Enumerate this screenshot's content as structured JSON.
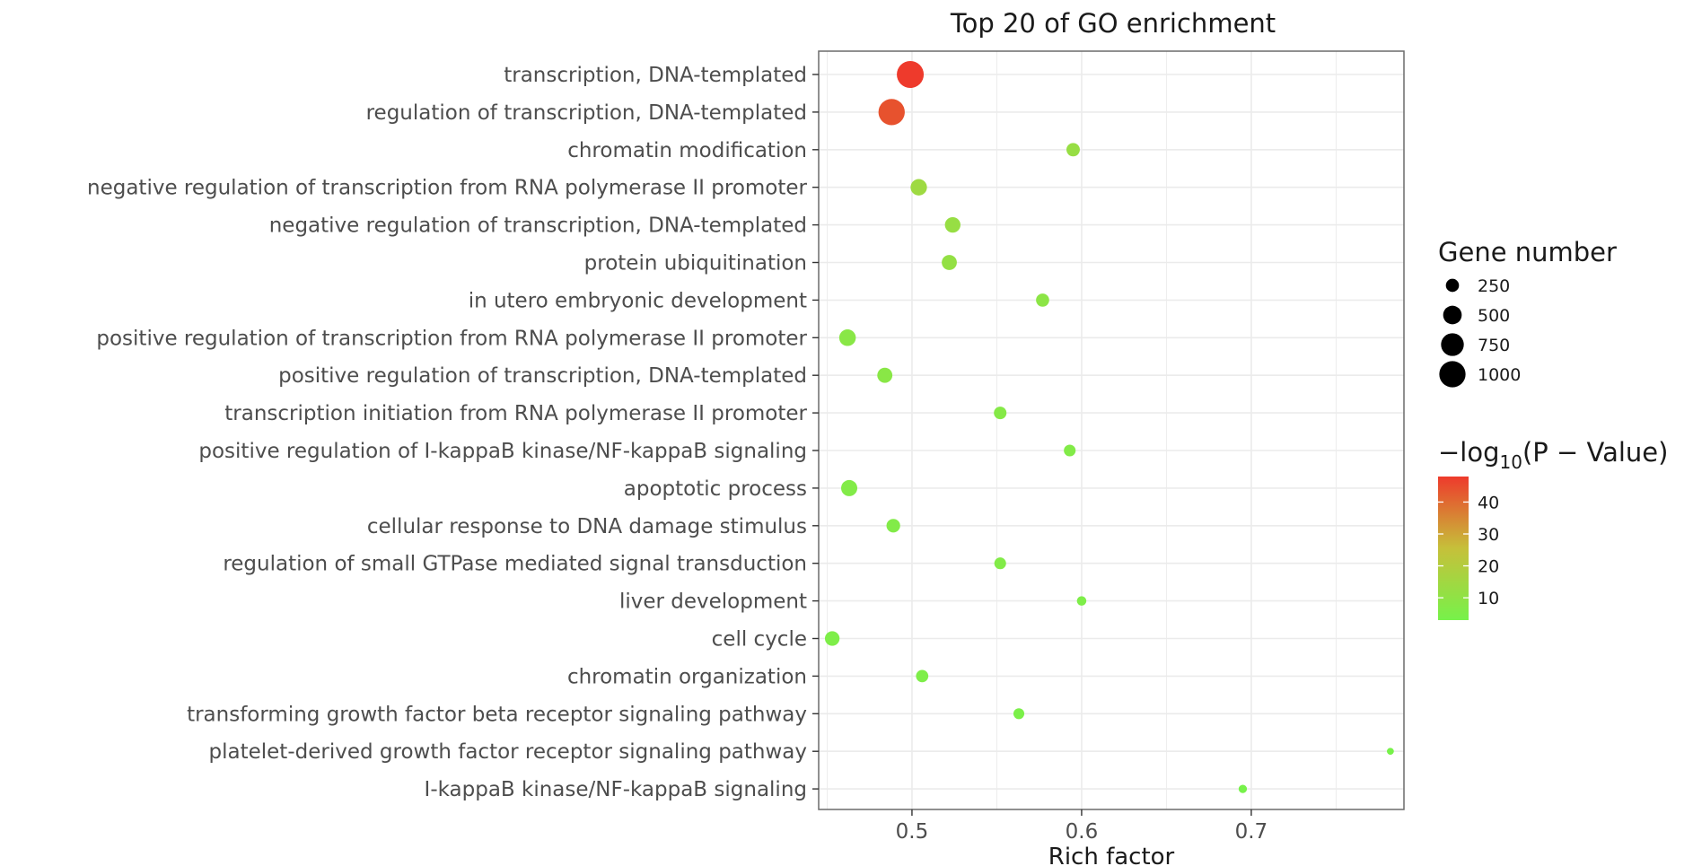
{
  "chart_data": {
    "type": "scatter",
    "title": "Top 20 of GO enrichment",
    "xlabel": "Rich factor",
    "ylabel": "",
    "xlim": [
      0.445,
      0.79
    ],
    "x_ticks": [
      0.5,
      0.6,
      0.7
    ],
    "x_tick_labels": [
      "0.5",
      "0.6",
      "0.7"
    ],
    "grid": true,
    "categories": [
      "transcription, DNA-templated",
      "regulation of transcription, DNA-templated",
      "chromatin modification",
      "negative regulation of transcription from RNA polymerase II promoter",
      "negative regulation of transcription, DNA-templated",
      "protein ubiquitination",
      "in utero embryonic development",
      "positive regulation of transcription from RNA polymerase II promoter",
      "positive regulation of transcription, DNA-templated",
      "transcription initiation from RNA polymerase II promoter",
      "positive regulation of I-kappaB kinase/NF-kappaB signaling",
      "apoptotic process",
      "cellular response to DNA damage stimulus",
      "regulation of small GTPase mediated signal transduction",
      "liver development",
      "cell cycle",
      "chromatin organization",
      "transforming growth factor beta receptor signaling pathway",
      "platelet-derived growth factor receptor signaling pathway",
      "I-kappaB kinase/NF-kappaB signaling"
    ],
    "rich_factor": [
      0.499,
      0.488,
      0.595,
      0.504,
      0.524,
      0.522,
      0.577,
      0.462,
      0.484,
      0.552,
      0.593,
      0.463,
      0.489,
      0.552,
      0.6,
      0.453,
      0.506,
      0.563,
      0.782,
      0.695
    ],
    "gene_number": [
      1050,
      1000,
      260,
      390,
      350,
      330,
      250,
      400,
      330,
      230,
      200,
      380,
      270,
      200,
      130,
      310,
      220,
      170,
      70,
      100
    ],
    "neg_log10_pvalue": [
      48,
      44,
      12,
      14,
      12,
      11,
      9,
      8,
      8,
      7,
      6,
      6,
      6,
      6,
      5,
      5,
      5,
      4,
      3,
      3
    ],
    "legend": {
      "size_title": "Gene number",
      "size_values": [
        250,
        500,
        750,
        1000
      ],
      "size_labels": [
        "250",
        "500",
        "750",
        "1000"
      ],
      "color_title_prefix": "−log",
      "color_title_sub": "10",
      "color_title_suffix": "(P − Value)",
      "color_ticks": [
        10,
        20,
        30,
        40
      ],
      "color_tick_labels": [
        "10",
        "20",
        "30",
        "40"
      ],
      "color_range": [
        3,
        48
      ],
      "color_low": "#77f24a",
      "color_mid": "#c6c03a",
      "color_high": "#ee3a2c",
      "placement": "right"
    }
  }
}
